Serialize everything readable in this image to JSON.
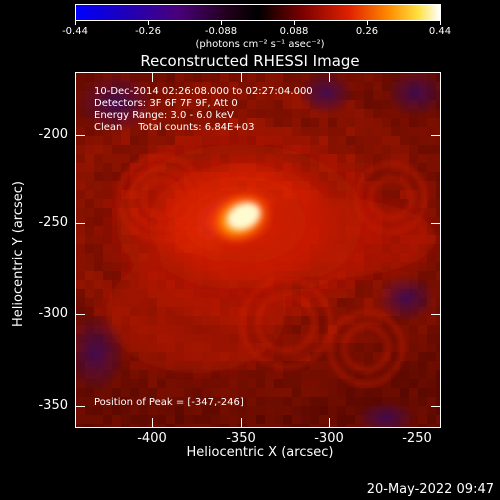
{
  "colorbar": {
    "ticks": [
      "-0.44",
      "-0.26",
      "-0.088",
      "0.088",
      "0.26",
      "0.44"
    ],
    "units": "(photons cm⁻² s⁻¹ asec⁻²)",
    "range": [
      -0.44,
      0.44
    ]
  },
  "title": "Reconstructed RHESSI Image",
  "info": {
    "time_range": "10-Dec-2014 02:26:08.000 to 02:27:04.000",
    "detectors": "Detectors: 3F 6F 7F 9F, Att 0",
    "energy": "Energy Range: 3.0 - 6.0 keV",
    "clean": "Clean     Total counts: 6.84E+03",
    "peak": "Position of Peak = [-347,-246]"
  },
  "axes": {
    "x_title": "Heliocentric X (arcsec)",
    "y_title": "Heliocentric Y (arcsec)",
    "x_ticks": [
      "-400",
      "-350",
      "-300",
      "-250"
    ],
    "y_ticks": [
      "-200",
      "-250",
      "-300",
      "-350"
    ],
    "x_range": [
      -440,
      -250
    ],
    "y_range": [
      -375,
      -180
    ]
  },
  "peak": {
    "x": -347,
    "y": -246
  },
  "colors": {
    "background": "#000000",
    "image_base": "#8a1200",
    "peak_core": "#fffbd0",
    "negative": "#2a0a6a"
  },
  "timestamp": "20-May-2022 09:47"
}
